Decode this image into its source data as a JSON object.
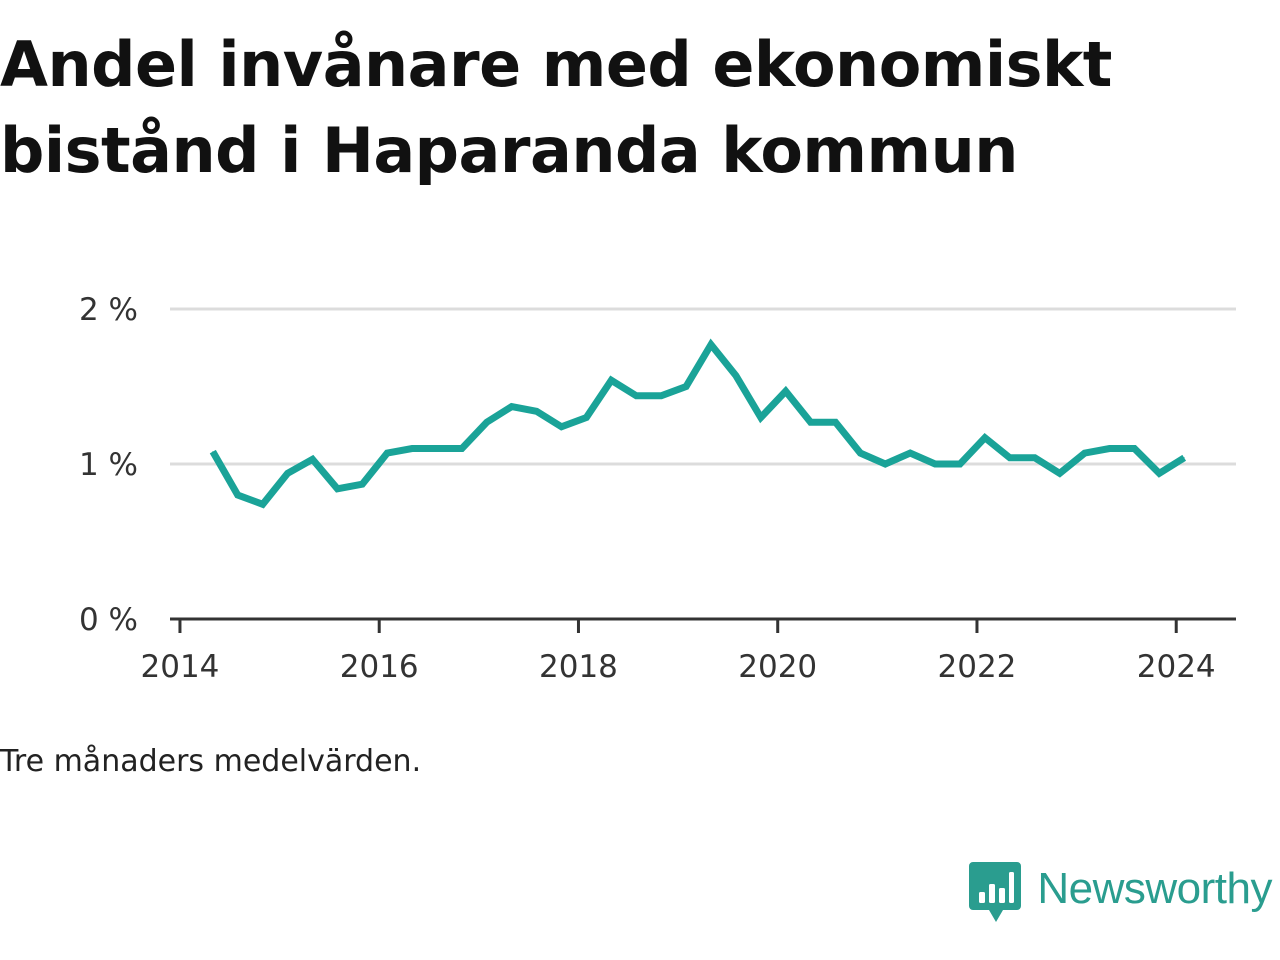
{
  "title_lines": [
    "Andel invånare med ekonomiskt",
    "bistånd i Haparanda kommun"
  ],
  "footnote": "Tre månaders medelvärden.",
  "brand": {
    "name": "Newsworthy",
    "color": "#2a9d8f",
    "icon": "bar-chart-speech-bubble-icon"
  },
  "chart_data": {
    "type": "line",
    "title": "Andel invånare med ekonomiskt bistånd i Haparanda kommun",
    "xlabel": "",
    "ylabel": "",
    "xlim": [
      2013.9,
      2024.6
    ],
    "ylim": [
      0,
      2
    ],
    "grid": true,
    "legend": "none",
    "line_color": "#1aa398",
    "y_ticks": [
      {
        "value": 0,
        "label": "0 %"
      },
      {
        "value": 1,
        "label": "1 %"
      },
      {
        "value": 2,
        "label": "2 %"
      }
    ],
    "x_ticks": [
      {
        "value": 2014,
        "label": "2014"
      },
      {
        "value": 2016,
        "label": "2016"
      },
      {
        "value": 2018,
        "label": "2018"
      },
      {
        "value": 2020,
        "label": "2020"
      },
      {
        "value": 2022,
        "label": "2022"
      },
      {
        "value": 2024,
        "label": "2024"
      }
    ],
    "series": [
      {
        "values": [
          [
            2014.33,
            1.08
          ],
          [
            2014.58,
            0.8
          ],
          [
            2014.83,
            0.74
          ],
          [
            2015.08,
            0.94
          ],
          [
            2015.33,
            1.03
          ],
          [
            2015.58,
            0.84
          ],
          [
            2015.83,
            0.87
          ],
          [
            2016.08,
            1.07
          ],
          [
            2016.33,
            1.1
          ],
          [
            2016.58,
            1.1
          ],
          [
            2016.83,
            1.1
          ],
          [
            2017.08,
            1.27
          ],
          [
            2017.33,
            1.37
          ],
          [
            2017.58,
            1.34
          ],
          [
            2017.83,
            1.24
          ],
          [
            2018.08,
            1.3
          ],
          [
            2018.33,
            1.54
          ],
          [
            2018.58,
            1.44
          ],
          [
            2018.83,
            1.44
          ],
          [
            2019.08,
            1.5
          ],
          [
            2019.33,
            1.77
          ],
          [
            2019.58,
            1.57
          ],
          [
            2019.83,
            1.3
          ],
          [
            2020.08,
            1.47
          ],
          [
            2020.33,
            1.27
          ],
          [
            2020.58,
            1.27
          ],
          [
            2020.83,
            1.07
          ],
          [
            2021.08,
            1.0
          ],
          [
            2021.33,
            1.07
          ],
          [
            2021.58,
            1.0
          ],
          [
            2021.83,
            1.0
          ],
          [
            2022.08,
            1.17
          ],
          [
            2022.33,
            1.04
          ],
          [
            2022.58,
            1.04
          ],
          [
            2022.83,
            0.94
          ],
          [
            2023.08,
            1.07
          ],
          [
            2023.33,
            1.1
          ],
          [
            2023.58,
            1.1
          ],
          [
            2023.83,
            0.94
          ],
          [
            2024.08,
            1.04
          ]
        ]
      }
    ]
  }
}
